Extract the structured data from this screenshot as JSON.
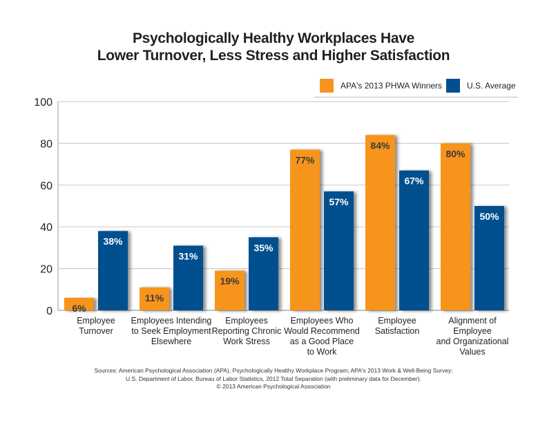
{
  "chart_data": {
    "type": "bar",
    "title_lines": [
      "Psychologically Healthy Workplaces Have",
      "Lower Turnover, Less Stress and Higher Satisfaction"
    ],
    "xlabel": "",
    "ylabel": "",
    "ylim": [
      0,
      100
    ],
    "yticks": [
      0,
      20,
      40,
      60,
      80,
      100
    ],
    "grid": true,
    "legend_position": "top-right",
    "categories": [
      [
        "Employee",
        "Turnover"
      ],
      [
        "Employees Intending",
        "to Seek Employment",
        "Elsewhere"
      ],
      [
        "Employees",
        "Reporting Chronic",
        "Work Stress"
      ],
      [
        "Employees Who",
        "Would Recommend",
        "as a Good Place",
        "to Work"
      ],
      [
        "Employee",
        "Satisfaction"
      ],
      [
        "Alignment of Employee",
        "and Organizational",
        "Values"
      ]
    ],
    "series": [
      {
        "name": "APA's 2013 PHWA Winners",
        "color": "#f7941d",
        "label_color": "#3a3a3a",
        "values": [
          6,
          11,
          19,
          77,
          84,
          80
        ],
        "labels": [
          "6%",
          "11%",
          "19%",
          "77%",
          "84%",
          "80%"
        ]
      },
      {
        "name": "U.S. Average",
        "color": "#00508f",
        "label_color": "#ffffff",
        "values": [
          38,
          31,
          35,
          57,
          67,
          50
        ],
        "labels": [
          "38%",
          "31%",
          "35%",
          "57%",
          "67%",
          "50%"
        ]
      }
    ]
  },
  "sources": {
    "line1": "Sources:  American Psychological Association (APA), Psychologically Healthy Workplace Program; APA's 2013 Work & Well-Being Survey;",
    "line2": "U.S. Department of Labor, Bureau of Labor Statistics, 2012 Total Separation (with preliminary data for December).",
    "line3": "© 2013 American Psychological Association"
  }
}
